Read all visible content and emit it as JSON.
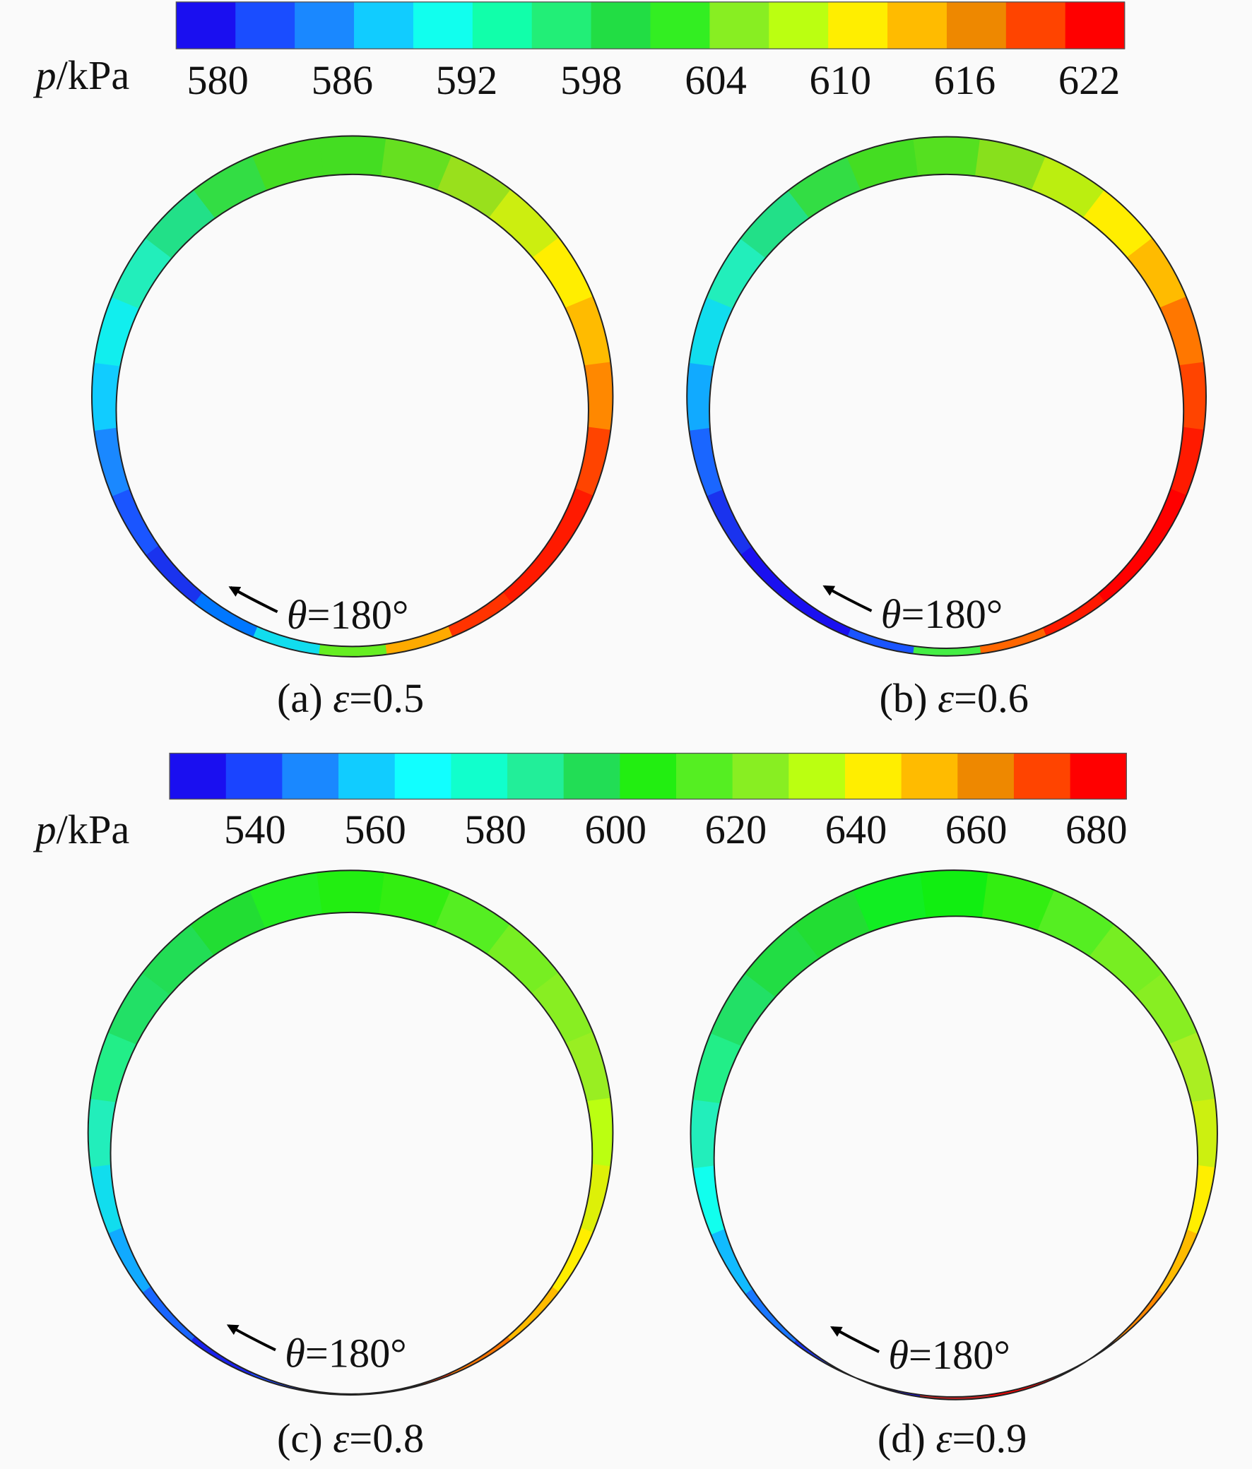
{
  "colorbars": [
    {
      "label": {
        "var": "p",
        "unit": "/kPa"
      },
      "range": [
        578,
        623.7
      ],
      "ticks": [
        580,
        586,
        592,
        598,
        604,
        610,
        616,
        622
      ],
      "colors": [
        "#1a0ff0",
        "#1a4dff",
        "#1a88ff",
        "#11ccff",
        "#11ffee",
        "#11ffaa",
        "#22ee77",
        "#22dd44",
        "#33ee22",
        "#88ee22",
        "#bbff11",
        "#ffee00",
        "#ffbb00",
        "#ee8800",
        "#ff4400",
        "#ff0000"
      ]
    },
    {
      "label": {
        "var": "p",
        "unit": "/kPa"
      },
      "range": [
        525.8,
        685
      ],
      "ticks": [
        540,
        560,
        580,
        600,
        620,
        640,
        660,
        680
      ],
      "colors": [
        "#1a0ff0",
        "#1a44ff",
        "#1a88ff",
        "#11ccff",
        "#11ffff",
        "#11ffcc",
        "#22ee99",
        "#22dd55",
        "#22ee11",
        "#55ee22",
        "#88ee22",
        "#bbff11",
        "#ffee00",
        "#ffbb00",
        "#ee8800",
        "#ff4400",
        "#ff0000"
      ]
    }
  ],
  "panels": [
    {
      "caption": {
        "tag": "(a) ",
        "var": "ε",
        "eq": "=0.5"
      },
      "annotation": {
        "var": "θ",
        "eq": "=180°"
      },
      "ring_colors": [
        "#44dd22",
        "#66e020",
        "#99e01c",
        "#ccee10",
        "#ffee00",
        "#ffbb00",
        "#ff8800",
        "#ff4400",
        "#ff1a00",
        "#ff1a00",
        "#ff3300",
        "#ffaa00",
        "#66ee22",
        "#11ddee",
        "#0077ff",
        "#1a33ee",
        "#1a55ff",
        "#1a88ff",
        "#11ccff",
        "#11eeee",
        "#22eebb",
        "#22e088",
        "#33dd44",
        "#44dd22"
      ]
    },
    {
      "caption": {
        "tag": "(b) ",
        "var": "ε",
        "eq": "=0.6"
      },
      "annotation": {
        "var": "θ",
        "eq": "=180°"
      },
      "ring_colors": [
        "#55e020",
        "#88e01c",
        "#bbee10",
        "#ffee00",
        "#ffbb00",
        "#ff7700",
        "#ff4400",
        "#ff1a00",
        "#ff0000",
        "#ff0000",
        "#ff1a00",
        "#ff6600",
        "#44ee44",
        "#1a55ff",
        "#1a10f0",
        "#1a10f0",
        "#1a33ee",
        "#1a66ff",
        "#11aaff",
        "#11ddee",
        "#22eebb",
        "#22e088",
        "#33dd44",
        "#44dd22"
      ]
    },
    {
      "caption": {
        "tag": "(c) ",
        "var": "ε",
        "eq": "=0.8"
      },
      "annotation": {
        "var": "θ",
        "eq": "=180°"
      },
      "ring_colors": [
        "#22ee11",
        "#33ee11",
        "#55ee22",
        "#77ee22",
        "#88ee22",
        "#99ee22",
        "#bbff11",
        "#ddf008",
        "#ffee00",
        "#ffbb00",
        "#ff7700",
        "#ff3300",
        "#ffcc00",
        "#1a44ff",
        "#1a22ee",
        "#1a66ff",
        "#11aaff",
        "#11ddee",
        "#22eebb",
        "#22ee88",
        "#22e066",
        "#22dd55",
        "#22dd33",
        "#22ee22"
      ]
    },
    {
      "caption": {
        "tag": "(d) ",
        "var": "ε",
        "eq": "=0.9"
      },
      "annotation": {
        "var": "θ",
        "eq": "=180°"
      },
      "ring_colors": [
        "#11ee11",
        "#33ee11",
        "#55ee22",
        "#77ee22",
        "#88ee22",
        "#aaee22",
        "#ccf010",
        "#ffee00",
        "#ffbb00",
        "#ff8800",
        "#ff4400",
        "#ff0000",
        "#cc2222",
        "#1a10f0",
        "#1a33ee",
        "#1a77ff",
        "#11bbff",
        "#11ffee",
        "#22eebb",
        "#22ee88",
        "#22e066",
        "#22dd44",
        "#22dd33",
        "#11ee22"
      ]
    }
  ]
}
